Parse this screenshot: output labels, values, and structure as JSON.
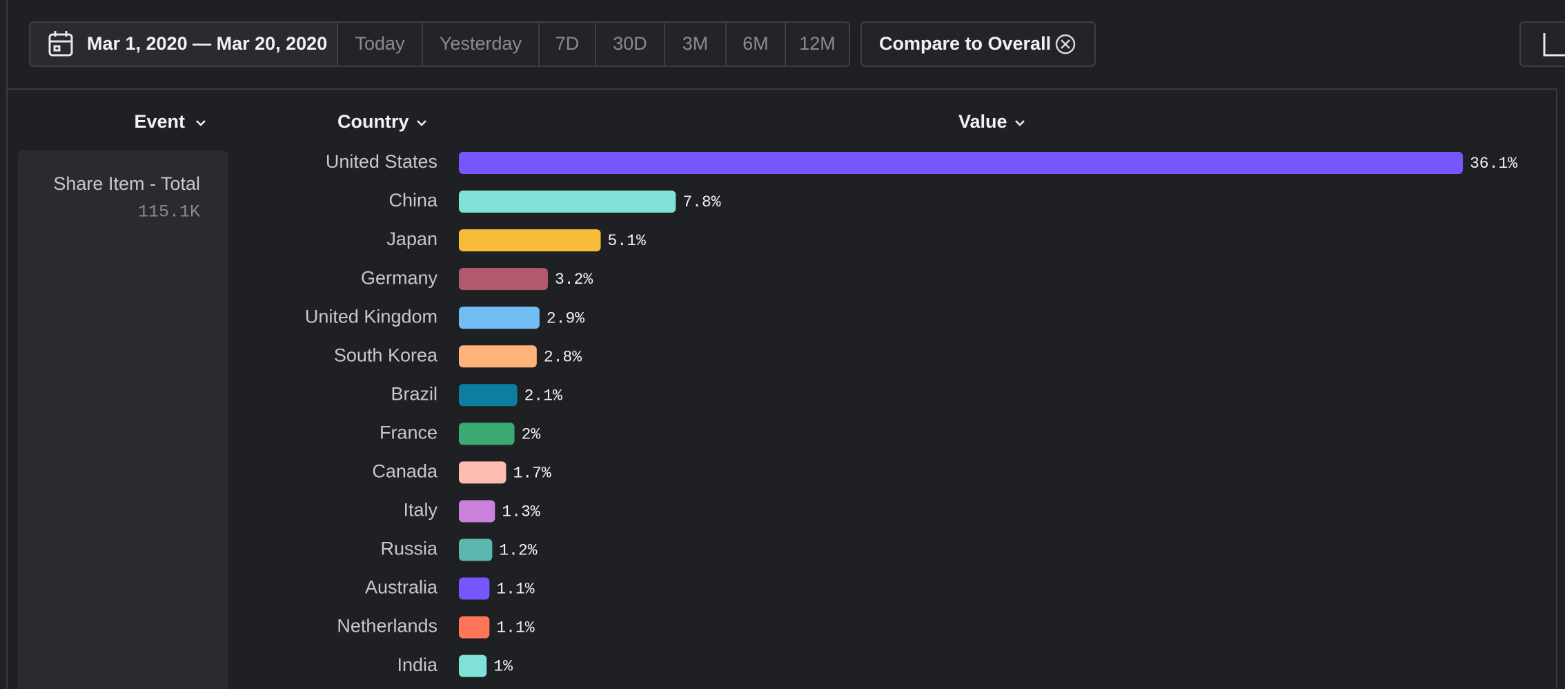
{
  "toolbar": {
    "date_range": "Mar 1, 2020 — Mar 20, 2020",
    "presets": [
      "Today",
      "Yesterday",
      "7D",
      "30D",
      "3M",
      "6M",
      "12M"
    ],
    "compare": "Compare to Overall"
  },
  "columns": [
    "Event",
    "Country",
    "Value"
  ],
  "event": {
    "name": "Share Item - Total",
    "total": "115.1K"
  },
  "chart_data": {
    "type": "bar",
    "orientation": "horizontal",
    "categories": [
      "United States",
      "China",
      "Japan",
      "Germany",
      "United Kingdom",
      "South Korea",
      "Brazil",
      "France",
      "Canada",
      "Italy",
      "Russia",
      "Australia",
      "Netherlands",
      "India"
    ],
    "values": [
      36.1,
      7.8,
      5.1,
      3.2,
      2.9,
      2.8,
      2.1,
      2,
      1.7,
      1.3,
      1.2,
      1.1,
      1.1,
      1
    ],
    "value_labels": [
      "36.1%",
      "7.8%",
      "5.1%",
      "3.2%",
      "2.9%",
      "2.8%",
      "2.1%",
      "2%",
      "1.7%",
      "1.3%",
      "1.2%",
      "1.1%",
      "1.1%",
      "1%"
    ],
    "colors": [
      "#7856ff",
      "#80e1d9",
      "#f8bc3b",
      "#b2596e",
      "#72bef4",
      "#ffb27a",
      "#0d7ea0",
      "#3ba974",
      "#febbb2",
      "#cb80dc",
      "#5cb7af",
      "#7856ff",
      "#ff7557",
      "#80e1d9"
    ]
  }
}
